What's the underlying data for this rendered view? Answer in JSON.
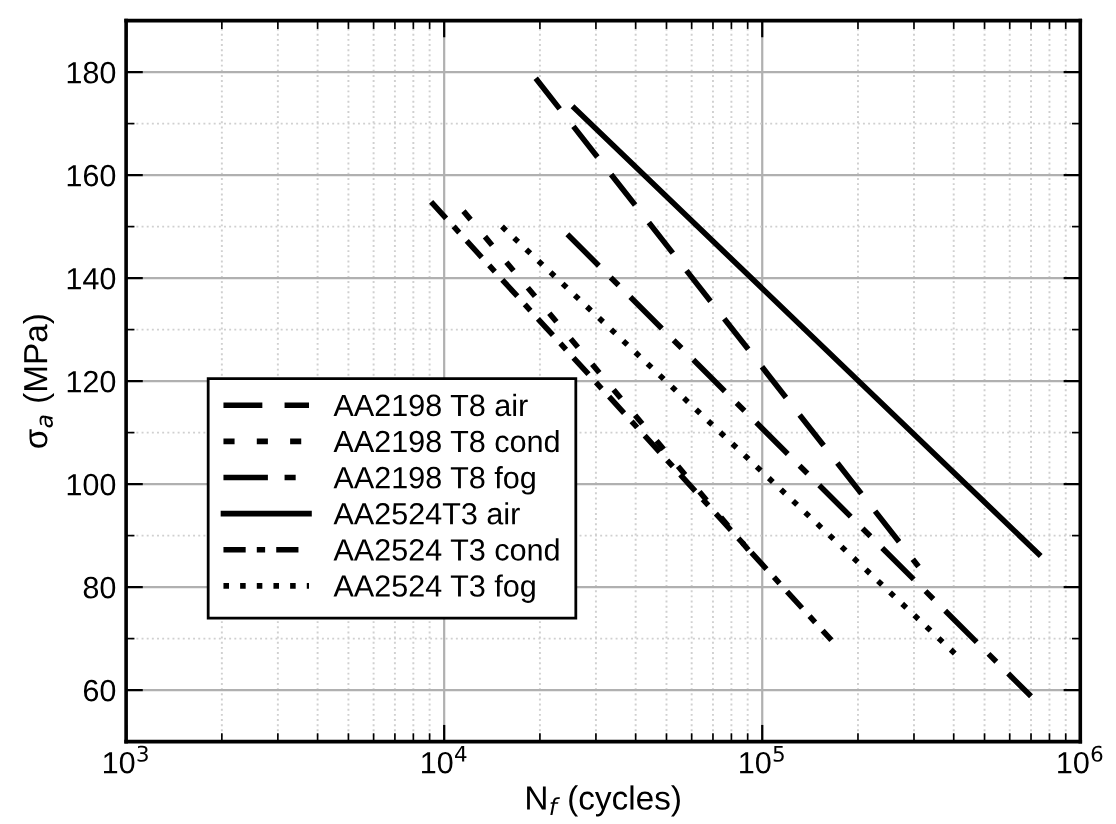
{
  "chart_data": {
    "type": "line",
    "xlabel": "N$_{f}$ (cycles)",
    "ylabel": "σ$_{a}$ (MPa)",
    "log": "x",
    "xlim": [
      1000,
      1000000
    ],
    "ylim": [
      50,
      190
    ],
    "xticks": [
      {
        "value": 1000,
        "label": "10$^{3}$"
      },
      {
        "value": 10000,
        "label": "10$^{4}$"
      },
      {
        "value": 100000,
        "label": "10$^{5}$"
      },
      {
        "value": 1000000,
        "label": "10$^{6}$"
      }
    ],
    "yticks": [
      60,
      80,
      100,
      120,
      140,
      160,
      180
    ],
    "grid": true,
    "legend": "bottom left",
    "marker": "none",
    "series": [
      {
        "name": "AA2198 T8 air",
        "color": "#000000",
        "line_style": "dashed",
        "x": [
          19400,
          310000
        ],
        "values": [
          178.8,
          84
        ]
      },
      {
        "name": "AA2198 T8 cond",
        "color": "#000000",
        "line_style": "dashdotdot",
        "x": [
          11500,
          90500
        ],
        "values": [
          153,
          87.2
        ]
      },
      {
        "name": "AA2198 T8 fog",
        "color": "#000000",
        "line_style": "dashdot",
        "x": [
          24400,
          700000
        ],
        "values": [
          148.5,
          58.8
        ]
      },
      {
        "name": "AA2524T3 air",
        "color": "#000000",
        "line_style": "solid",
        "x": [
          25700,
          740000
        ],
        "values": [
          173,
          86.4
        ]
      },
      {
        "name": "AA2524 T3 cond",
        "color": "#000000",
        "line_style": "dashdotshort",
        "x": [
          9100,
          165000
        ],
        "values": [
          154.8,
          69.7
        ]
      },
      {
        "name": "AA2524 T3 fog",
        "color": "#000000",
        "line_style": "dotted",
        "x": [
          15200,
          405000
        ],
        "values": [
          150,
          67
        ]
      }
    ]
  }
}
